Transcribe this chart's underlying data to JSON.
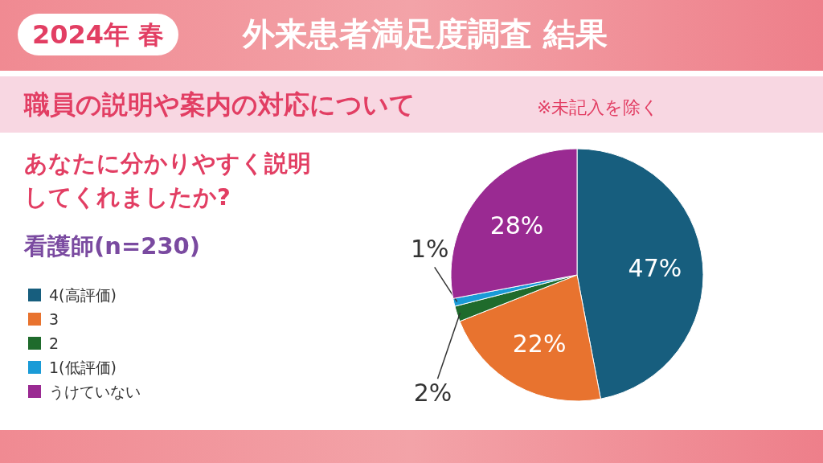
{
  "chart_data": {
    "type": "pie",
    "title": "外来患者満足度調査 結果",
    "subtitle": "職員の説明や案内の対応について",
    "annotations": [
      "2024年 春",
      "※未記入を除く",
      "あなたに分かりやすく説明してくれましたか?",
      "看護師(n=230)"
    ],
    "categories": [
      "4(高評価)",
      "3",
      "2",
      "1(低評価)",
      "うけていない"
    ],
    "values": [
      47,
      22,
      2,
      1,
      28
    ],
    "value_labels": [
      "47%",
      "22%",
      "2%",
      "1%",
      "28%"
    ],
    "colors": [
      "#175e7e",
      "#e8732f",
      "#1f6b2c",
      "#1a9bd7",
      "#9a2a92"
    ],
    "legend": "left"
  }
}
